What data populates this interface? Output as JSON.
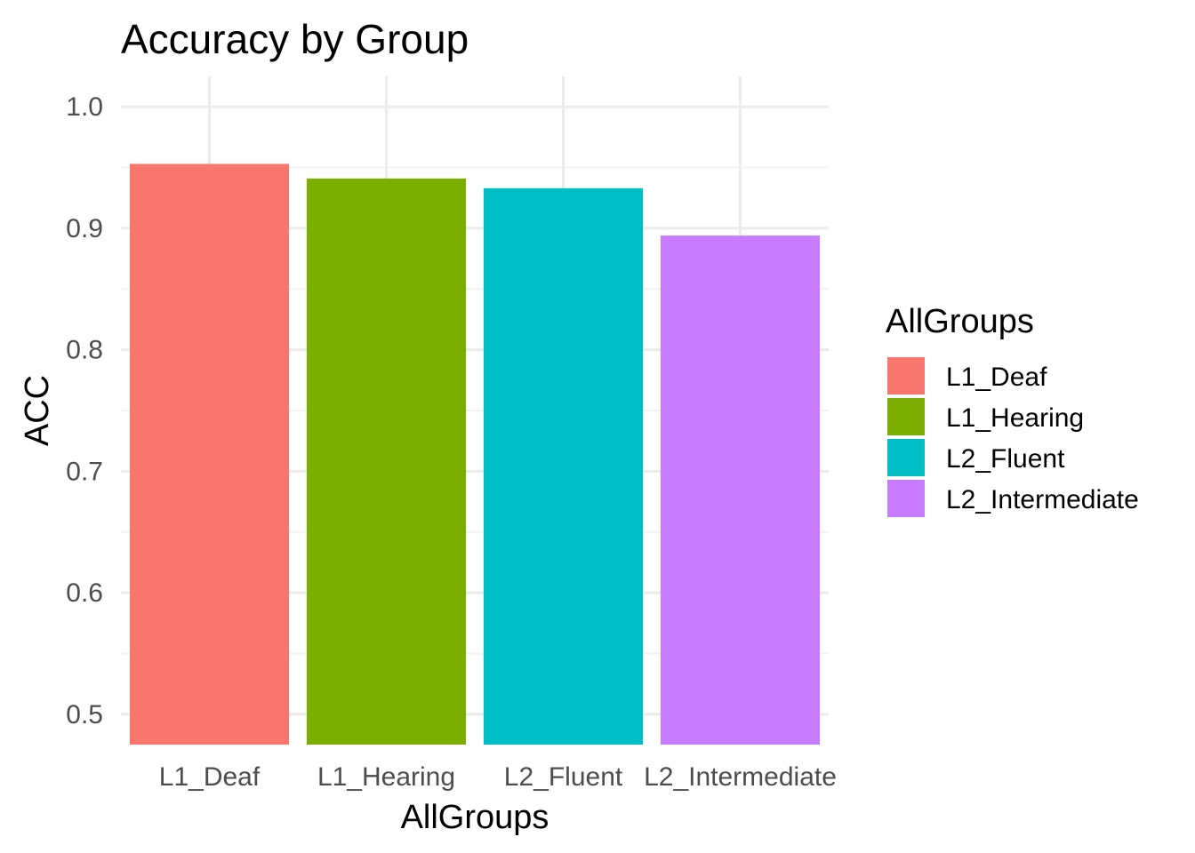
{
  "chart_data": {
    "type": "bar",
    "title": "Accuracy by Group",
    "xlabel": "AllGroups",
    "ylabel": "ACC",
    "categories": [
      "L1_Deaf",
      "L1_Hearing",
      "L2_Fluent",
      "L2_Intermediate"
    ],
    "values": [
      0.953,
      0.941,
      0.933,
      0.894
    ],
    "colors": [
      "#F8766D",
      "#7CAE00",
      "#00BFC4",
      "#C77CFF"
    ],
    "ylim": [
      0.475,
      1.025
    ],
    "y_ticks": [
      "0.5",
      "0.6",
      "0.7",
      "0.8",
      "0.9",
      "1.0"
    ],
    "grid": true,
    "legend": {
      "title": "AllGroups",
      "position": "right",
      "entries": [
        "L1_Deaf",
        "L1_Hearing",
        "L2_Fluent",
        "L2_Intermediate"
      ]
    }
  }
}
